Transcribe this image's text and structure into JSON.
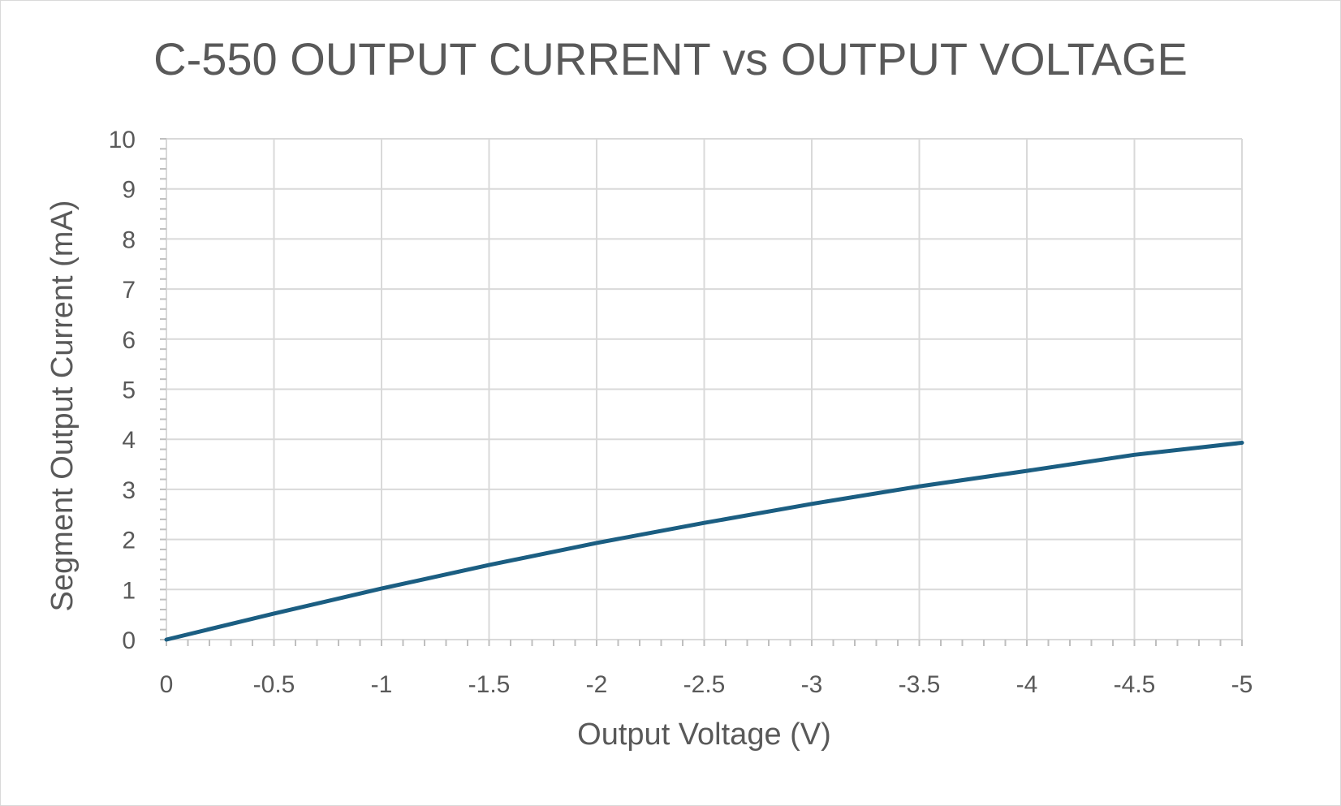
{
  "chart_data": {
    "type": "line",
    "title": "C-550 OUTPUT CURRENT vs OUTPUT VOLTAGE",
    "xlabel": "Output Voltage (V)",
    "ylabel": "Segment Output Current (mA)",
    "xlim": [
      0,
      -5
    ],
    "ylim": [
      0,
      10
    ],
    "x_ticks": [
      "0",
      "-0.5",
      "-1",
      "-1.5",
      "-2",
      "-2.5",
      "-3",
      "-3.5",
      "-4",
      "-4.5",
      "-5"
    ],
    "y_ticks": [
      "0",
      "1",
      "2",
      "3",
      "4",
      "5",
      "6",
      "7",
      "8",
      "9",
      "10"
    ],
    "grid": true,
    "legend": "none",
    "series": [
      {
        "color": "#1b5e82",
        "x": [
          0,
          -0.5,
          -1,
          -1.5,
          -2,
          -2.5,
          -3,
          -3.5,
          -4,
          -4.5,
          -5
        ],
        "y": [
          0,
          0.52,
          1.02,
          1.49,
          1.93,
          2.33,
          2.71,
          3.06,
          3.37,
          3.69,
          3.93
        ]
      }
    ]
  }
}
